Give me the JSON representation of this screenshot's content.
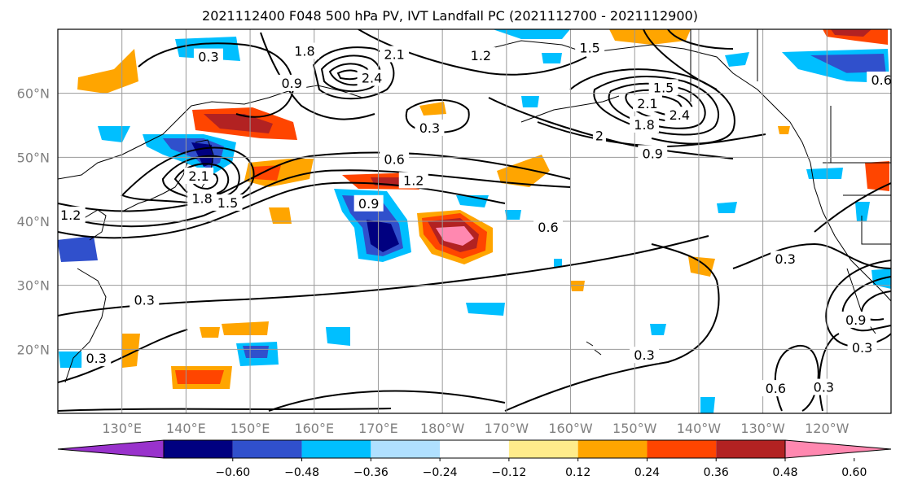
{
  "title": "2021112400 F048 500 hPa PV, IVT Landfall PC (2021112700 - 2021112900)",
  "map": {
    "projection": "PlateCarree",
    "lon_range": [
      120,
      250
    ],
    "lat_range": [
      10,
      70
    ],
    "lon_ticks": [
      {
        "lon": 130,
        "label": "130°E"
      },
      {
        "lon": 140,
        "label": "140°E"
      },
      {
        "lon": 150,
        "label": "150°E"
      },
      {
        "lon": 160,
        "label": "160°E"
      },
      {
        "lon": 170,
        "label": "170°E"
      },
      {
        "lon": 180,
        "label": "180°W"
      },
      {
        "lon": 190,
        "label": "170°W"
      },
      {
        "lon": 200,
        "label": "160°W"
      },
      {
        "lon": 210,
        "label": "150°W"
      },
      {
        "lon": 220,
        "label": "140°W"
      },
      {
        "lon": 230,
        "label": "130°W"
      },
      {
        "lon": 240,
        "label": "120°W"
      }
    ],
    "lat_ticks": [
      {
        "lat": 20,
        "label": "20°N"
      },
      {
        "lat": 30,
        "label": "30°N"
      },
      {
        "lat": 40,
        "label": "40°N"
      },
      {
        "lat": 50,
        "label": "50°N"
      },
      {
        "lat": 60,
        "label": "60°N"
      }
    ],
    "gridlines": true
  },
  "colorbar": {
    "extend": "both",
    "colors": [
      "#9932cc",
      "#000080",
      "#3050cc",
      "#00bfff",
      "#b0e0ff",
      "#ffffff",
      "#ffec8b",
      "#ffa500",
      "#ff4500",
      "#b22222",
      "#ff88b0"
    ],
    "ticks": [
      "−0.60",
      "−0.48",
      "−0.36",
      "−0.24",
      "−0.12",
      "0.12",
      "0.24",
      "0.36",
      "0.48",
      "0.60"
    ]
  },
  "contour_labels": [
    {
      "lon": 143.5,
      "lat": 65.6,
      "text": "0.3"
    },
    {
      "lon": 158.5,
      "lat": 66.5,
      "text": "1.8"
    },
    {
      "lon": 156.5,
      "lat": 61.5,
      "text": "0.9"
    },
    {
      "lon": 172.5,
      "lat": 66.0,
      "text": "2.1"
    },
    {
      "lon": 169.0,
      "lat": 62.3,
      "text": "2.4"
    },
    {
      "lon": 186.0,
      "lat": 65.8,
      "text": "1.2"
    },
    {
      "lon": 178.0,
      "lat": 54.5,
      "text": "0.3"
    },
    {
      "lon": 203.0,
      "lat": 67.0,
      "text": "1.5"
    },
    {
      "lon": 214.5,
      "lat": 60.8,
      "text": "1.5"
    },
    {
      "lon": 212.0,
      "lat": 58.3,
      "text": "2.1"
    },
    {
      "lon": 217.0,
      "lat": 56.5,
      "text": "2.4"
    },
    {
      "lon": 211.5,
      "lat": 55.0,
      "text": "1.8"
    },
    {
      "lon": 204.5,
      "lat": 53.3,
      "text": "2"
    },
    {
      "lon": 212.8,
      "lat": 50.5,
      "text": "0.9"
    },
    {
      "lon": 172.5,
      "lat": 49.6,
      "text": "0.6"
    },
    {
      "lon": 175.5,
      "lat": 46.3,
      "text": "1.2"
    },
    {
      "lon": 168.5,
      "lat": 42.7,
      "text": "0.9"
    },
    {
      "lon": 142.0,
      "lat": 47.0,
      "text": "2.1"
    },
    {
      "lon": 142.5,
      "lat": 43.5,
      "text": "1.8"
    },
    {
      "lon": 146.5,
      "lat": 42.8,
      "text": "1.5"
    },
    {
      "lon": 122.0,
      "lat": 40.9,
      "text": "1.2"
    },
    {
      "lon": 196.5,
      "lat": 39.0,
      "text": "0.6"
    },
    {
      "lon": 233.5,
      "lat": 34.0,
      "text": "0.3"
    },
    {
      "lon": 133.5,
      "lat": 27.6,
      "text": "0.3"
    },
    {
      "lon": 126.0,
      "lat": 18.5,
      "text": "0.3"
    },
    {
      "lon": 211.5,
      "lat": 19.0,
      "text": "0.3"
    },
    {
      "lon": 232.0,
      "lat": 13.8,
      "text": "0.6"
    },
    {
      "lon": 239.5,
      "lat": 14.0,
      "text": "0.3"
    },
    {
      "lon": 245.5,
      "lat": 20.2,
      "text": "0.3"
    },
    {
      "lon": 244.5,
      "lat": 24.5,
      "text": "0.9"
    },
    {
      "lon": 248.5,
      "lat": 62.0,
      "text": "0.6"
    }
  ]
}
